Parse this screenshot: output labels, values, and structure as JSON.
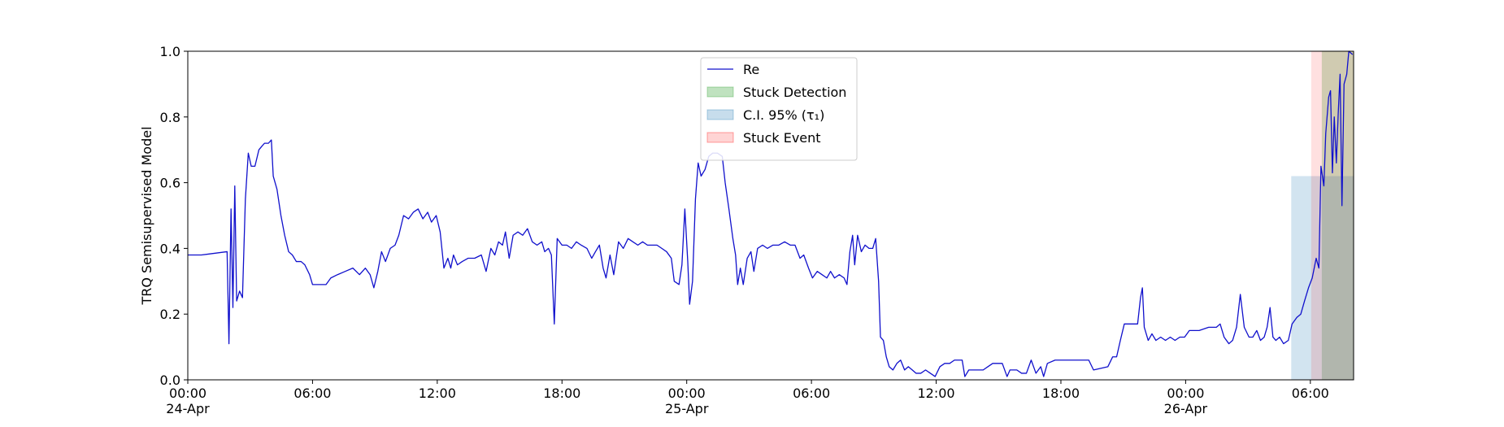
{
  "chart_data": {
    "type": "line",
    "ylabel": "TRQ Semisupervised Model",
    "xlim": [
      0,
      56.08
    ],
    "xticks": [
      {
        "value": 0,
        "label": "00:00\n24-Apr"
      },
      {
        "value": 6,
        "label": "06:00"
      },
      {
        "value": 12,
        "label": "12:00"
      },
      {
        "value": 18,
        "label": "18:00"
      },
      {
        "value": 24,
        "label": "00:00\n25-Apr"
      },
      {
        "value": 30,
        "label": "06:00"
      },
      {
        "value": 36,
        "label": "12:00"
      },
      {
        "value": 42,
        "label": "18:00"
      },
      {
        "value": 48,
        "label": "00:00\n26-Apr"
      },
      {
        "value": 54,
        "label": "06:00"
      }
    ],
    "ylim": [
      0,
      1
    ],
    "yticks": [
      {
        "value": 0,
        "label": "0.0"
      },
      0.2,
      0.4,
      0.6,
      0.8,
      {
        "value": 1,
        "label": "1.0"
      }
    ],
    "legend": "upper center",
    "x": [
      0,
      0.65,
      1.89,
      1.98,
      2.08,
      2.17,
      2.26,
      2.35,
      2.49,
      2.63,
      2.77,
      2.91,
      3.05,
      3.23,
      3.42,
      3.55,
      3.69,
      3.88,
      4.02,
      4.11,
      4.29,
      4.48,
      4.66,
      4.85,
      5.03,
      5.22,
      5.45,
      5.63,
      5.86,
      6.0,
      6.32,
      6.65,
      6.88,
      7.2,
      7.57,
      7.94,
      8.26,
      8.54,
      8.77,
      8.95,
      9.14,
      9.32,
      9.51,
      9.74,
      9.97,
      10.15,
      10.38,
      10.62,
      10.85,
      11.08,
      11.31,
      11.54,
      11.72,
      11.95,
      12.14,
      12.32,
      12.51,
      12.65,
      12.78,
      12.97,
      13.2,
      13.48,
      13.8,
      14.12,
      14.35,
      14.58,
      14.77,
      14.95,
      15.14,
      15.28,
      15.46,
      15.65,
      15.88,
      16.11,
      16.34,
      16.57,
      16.8,
      17.03,
      17.17,
      17.35,
      17.49,
      17.63,
      17.77,
      18.0,
      18.23,
      18.46,
      18.69,
      18.92,
      19.2,
      19.43,
      19.61,
      19.8,
      19.98,
      20.12,
      20.31,
      20.49,
      20.72,
      20.95,
      21.18,
      21.41,
      21.65,
      21.88,
      22.11,
      22.34,
      22.57,
      22.8,
      23.03,
      23.26,
      23.4,
      23.63,
      23.77,
      23.91,
      24.05,
      24.14,
      24.28,
      24.42,
      24.55,
      24.69,
      24.88,
      25.06,
      25.25,
      25.48,
      25.71,
      25.85,
      26.03,
      26.22,
      26.35,
      26.45,
      26.58,
      26.72,
      26.91,
      27.09,
      27.23,
      27.41,
      27.65,
      27.88,
      28.15,
      28.43,
      28.71,
      28.98,
      29.21,
      29.45,
      29.63,
      29.86,
      30.05,
      30.28,
      30.51,
      30.74,
      30.92,
      31.11,
      31.34,
      31.57,
      31.71,
      31.85,
      31.98,
      32.08,
      32.22,
      32.4,
      32.58,
      32.77,
      32.95,
      33.09,
      33.23,
      33.32,
      33.46,
      33.6,
      33.74,
      33.92,
      34.11,
      34.29,
      34.48,
      34.66,
      34.85,
      35.03,
      35.26,
      35.49,
      35.72,
      35.95,
      36.18,
      36.41,
      36.65,
      36.88,
      37.25,
      37.38,
      37.57,
      37.94,
      38.26,
      38.49,
      38.72,
      39.18,
      39.41,
      39.55,
      39.88,
      40.11,
      40.34,
      40.57,
      40.8,
      41.03,
      41.17,
      41.35,
      41.72,
      42.18,
      42.87,
      43.34,
      43.57,
      44.26,
      44.49,
      44.68,
      44.86,
      45.05,
      45.42,
      45.69,
      45.83,
      45.92,
      46.01,
      46.2,
      46.38,
      46.57,
      46.8,
      47.03,
      47.26,
      47.49,
      47.72,
      47.95,
      48.18,
      48.65,
      49.11,
      49.48,
      49.66,
      49.85,
      50.08,
      50.26,
      50.45,
      50.63,
      50.82,
      51.05,
      51.23,
      51.42,
      51.6,
      51.78,
      51.92,
      52.06,
      52.2,
      52.34,
      52.52,
      52.71,
      52.94,
      53.12,
      53.35,
      53.54,
      53.72,
      53.91,
      54.09,
      54.28,
      54.41,
      54.51,
      54.65,
      54.74,
      54.88,
      54.97,
      55.06,
      55.15,
      55.25,
      55.34,
      55.43,
      55.52,
      55.62,
      55.75,
      55.85,
      56.03
    ],
    "series": [
      {
        "name": "Re",
        "color": "#1010cc",
        "values": [
          0.38,
          0.38,
          0.39,
          0.11,
          0.52,
          0.22,
          0.59,
          0.24,
          0.27,
          0.25,
          0.55,
          0.69,
          0.65,
          0.65,
          0.7,
          0.71,
          0.72,
          0.72,
          0.73,
          0.62,
          0.58,
          0.5,
          0.44,
          0.39,
          0.38,
          0.36,
          0.36,
          0.35,
          0.32,
          0.29,
          0.29,
          0.29,
          0.31,
          0.32,
          0.33,
          0.34,
          0.32,
          0.34,
          0.32,
          0.28,
          0.33,
          0.39,
          0.36,
          0.4,
          0.41,
          0.44,
          0.5,
          0.49,
          0.51,
          0.52,
          0.49,
          0.51,
          0.48,
          0.5,
          0.45,
          0.34,
          0.37,
          0.34,
          0.38,
          0.35,
          0.36,
          0.37,
          0.37,
          0.38,
          0.33,
          0.4,
          0.38,
          0.42,
          0.41,
          0.45,
          0.37,
          0.44,
          0.45,
          0.44,
          0.46,
          0.42,
          0.41,
          0.42,
          0.39,
          0.4,
          0.38,
          0.17,
          0.43,
          0.41,
          0.41,
          0.4,
          0.42,
          0.41,
          0.4,
          0.37,
          0.39,
          0.41,
          0.34,
          0.31,
          0.38,
          0.32,
          0.42,
          0.4,
          0.43,
          0.42,
          0.41,
          0.42,
          0.41,
          0.41,
          0.41,
          0.4,
          0.39,
          0.37,
          0.3,
          0.29,
          0.35,
          0.52,
          0.36,
          0.23,
          0.3,
          0.55,
          0.66,
          0.62,
          0.64,
          0.68,
          0.69,
          0.69,
          0.68,
          0.6,
          0.52,
          0.43,
          0.38,
          0.29,
          0.34,
          0.29,
          0.37,
          0.39,
          0.33,
          0.4,
          0.41,
          0.4,
          0.41,
          0.41,
          0.42,
          0.41,
          0.41,
          0.37,
          0.38,
          0.34,
          0.31,
          0.33,
          0.32,
          0.31,
          0.33,
          0.31,
          0.32,
          0.31,
          0.29,
          0.39,
          0.44,
          0.35,
          0.44,
          0.39,
          0.41,
          0.4,
          0.4,
          0.43,
          0.3,
          0.13,
          0.12,
          0.07,
          0.04,
          0.03,
          0.05,
          0.06,
          0.03,
          0.04,
          0.03,
          0.02,
          0.02,
          0.03,
          0.02,
          0.01,
          0.04,
          0.05,
          0.05,
          0.06,
          0.06,
          0.01,
          0.03,
          0.03,
          0.03,
          0.04,
          0.05,
          0.05,
          0.01,
          0.03,
          0.03,
          0.02,
          0.02,
          0.06,
          0.02,
          0.04,
          0.01,
          0.05,
          0.06,
          0.06,
          0.06,
          0.06,
          0.03,
          0.04,
          0.07,
          0.07,
          0.12,
          0.17,
          0.17,
          0.17,
          0.25,
          0.28,
          0.16,
          0.12,
          0.14,
          0.12,
          0.13,
          0.12,
          0.13,
          0.12,
          0.13,
          0.13,
          0.15,
          0.15,
          0.16,
          0.16,
          0.17,
          0.13,
          0.11,
          0.12,
          0.16,
          0.26,
          0.16,
          0.13,
          0.13,
          0.15,
          0.12,
          0.13,
          0.16,
          0.22,
          0.13,
          0.12,
          0.13,
          0.11,
          0.12,
          0.17,
          0.19,
          0.2,
          0.24,
          0.28,
          0.31,
          0.37,
          0.34,
          0.65,
          0.59,
          0.75,
          0.86,
          0.88,
          0.63,
          0.8,
          0.66,
          0.81,
          0.93,
          0.53,
          0.9,
          0.93,
          1.0,
          0.99
        ]
      }
    ],
    "bands": [
      {
        "name": "Stuck Detection",
        "color": "#2ca02c",
        "alpha": 0.25,
        "spans": [
          [
            54.55,
            56.08
          ]
        ]
      },
      {
        "name": "C.I. 95% (τ₁)",
        "color": "#1f77b4",
        "alpha": 0.2,
        "spans": [
          [
            53.08,
            56.08
          ]
        ],
        "ymax": 0.62
      },
      {
        "name": "Stuck Event",
        "color": "#ff0000",
        "alpha": 0.12,
        "spans": [
          [
            54.04,
            56.08
          ]
        ]
      }
    ]
  }
}
